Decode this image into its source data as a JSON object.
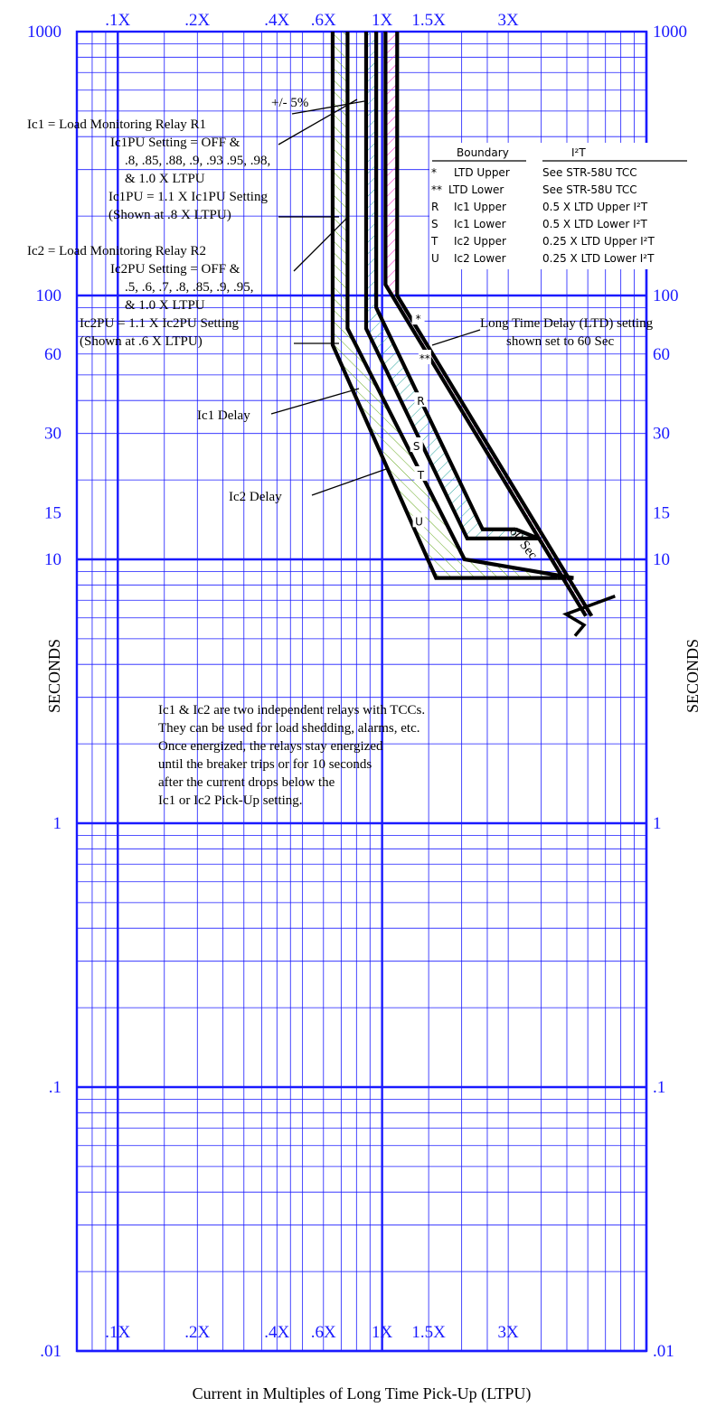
{
  "chart_data": {
    "type": "line",
    "title": "",
    "xlabel": "Current in Multiples of Long Time Pick-Up (LTPU)",
    "ylabel": "SECONDS",
    "x_scale": "log",
    "y_scale": "log",
    "xlim": [
      0.07,
      10
    ],
    "ylim": [
      0.01,
      1000
    ],
    "x_ticks": [
      {
        "value": 0.1,
        "label": ".1X"
      },
      {
        "value": 0.2,
        "label": ".2X"
      },
      {
        "value": 0.4,
        "label": ".4X"
      },
      {
        "value": 0.6,
        "label": ".6X"
      },
      {
        "value": 1.0,
        "label": "1X"
      },
      {
        "value": 1.5,
        "label": "1.5X"
      },
      {
        "value": 3.0,
        "label": "3X"
      }
    ],
    "y_ticks": [
      {
        "value": 1000,
        "label": "1000"
      },
      {
        "value": 100,
        "label": "100"
      },
      {
        "value": 60,
        "label": "60"
      },
      {
        "value": 30,
        "label": "30"
      },
      {
        "value": 15,
        "label": "15"
      },
      {
        "value": 10,
        "label": "10"
      },
      {
        "value": 1,
        "label": "1"
      },
      {
        "value": 0.1,
        "label": ".1"
      },
      {
        "value": 0.01,
        "label": ".01"
      }
    ],
    "grid": true,
    "colors": {
      "grid": "#1a1aff",
      "curve": "#000000",
      "ic1_hatch": "#2aa6a0",
      "ic2_hatch": "#66aa22",
      "ltd_hatch": "#ff33cc"
    },
    "bands": [
      {
        "name": "Ic2 Delay",
        "hatch": "ic2_hatch",
        "outer": [
          [
            0.65,
            1000
          ],
          [
            0.65,
            65
          ],
          [
            1.6,
            8.5
          ],
          [
            4.6,
            8.5
          ]
        ],
        "inner": [
          [
            0.74,
            1000
          ],
          [
            0.74,
            75
          ],
          [
            2.05,
            10
          ],
          [
            5.3,
            8.5
          ]
        ]
      },
      {
        "name": "Ic1 Delay",
        "hatch": "ic1_hatch",
        "outer": [
          [
            0.87,
            1000
          ],
          [
            0.87,
            75
          ],
          [
            2.1,
            12
          ],
          [
            3.9,
            12
          ]
        ],
        "inner": [
          [
            0.95,
            1000
          ],
          [
            0.95,
            90
          ],
          [
            2.4,
            13
          ],
          [
            3.2,
            13
          ]
        ]
      },
      {
        "name": "Long Time Delay",
        "hatch": "ltd_hatch",
        "outer": [
          [
            1.03,
            1000
          ],
          [
            1.03,
            110
          ],
          [
            5.9,
            6.1
          ]
        ],
        "inner": [
          [
            1.14,
            1000
          ],
          [
            1.14,
            100
          ],
          [
            6.2,
            6.1
          ]
        ]
      }
    ],
    "curve_letters": [
      {
        "label": "*",
        "x": 1.37,
        "y": 82
      },
      {
        "label": "**",
        "x": 1.45,
        "y": 58
      },
      {
        "label": "R",
        "x": 1.4,
        "y": 40
      },
      {
        "label": "S",
        "x": 1.35,
        "y": 27
      },
      {
        "label": "T",
        "x": 1.4,
        "y": 21
      },
      {
        "label": "U",
        "x": 1.38,
        "y": 14
      }
    ],
    "annotations": {
      "tolerance": "+/- 5%",
      "ic1_title": "Ic1 = Load Monitoring Relay R1",
      "ic1_lines": [
        "Ic1PU Setting = OFF &",
        ".8, .85, .88, .9, .93 .95, .98,",
        "& 1.0 X LTPU"
      ],
      "ic1_pu": "Ic1PU = 1.1 X Ic1PU Setting",
      "ic1_shown": "(Shown at .8 X LTPU)",
      "ic2_title": "Ic2 = Load Monitoring Relay R2",
      "ic2_lines": [
        "Ic2PU Setting = OFF &",
        ".5, .6, .7, .8, .85, .9, .95,",
        "& 1.0 X LTPU"
      ],
      "ic2_pu": "Ic2PU = 1.1 X Ic2PU Setting",
      "ic2_shown": "(Shown at .6 X LTPU)",
      "ic1_delay": "Ic1 Delay",
      "ic2_delay": "Ic2 Delay",
      "ltd_note_1": "Long Time Delay (LTD) setting",
      "ltd_note_2": "shown set to 60 Sec",
      "sixty_sec": "60 Sec",
      "note_lines": [
        "Ic1 & Ic2 are two independent relays with TCCs.",
        "They can be used for load shedding, alarms, etc.",
        "Once energized, the relays stay energized",
        "until the breaker trips or for 10 seconds",
        "after the current drops below the",
        "Ic1 or Ic2 Pick-Up setting."
      ]
    },
    "legend_table": {
      "header_boundary": "Boundary",
      "header_i2t": "I²T",
      "rows": [
        {
          "code": "*",
          "boundary": "LTD Upper",
          "i2t": "See STR-58U TCC"
        },
        {
          "code": "**",
          "boundary": "LTD Lower",
          "i2t": "See STR-58U TCC"
        },
        {
          "code": "R",
          "boundary": "Ic1 Upper",
          "i2t": "0.5 X LTD Upper I²T"
        },
        {
          "code": "S",
          "boundary": "Ic1 Lower",
          "i2t": "0.5 X LTD Lower I²T"
        },
        {
          "code": "T",
          "boundary": "Ic2 Upper",
          "i2t": "0.25 X LTD Upper I²T"
        },
        {
          "code": "U",
          "boundary": "Ic2 Lower",
          "i2t": "0.25 X LTD Lower I²T"
        }
      ]
    }
  }
}
